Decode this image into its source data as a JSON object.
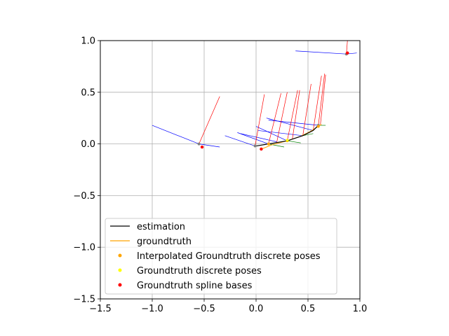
{
  "chart_data": {
    "type": "scatter",
    "title": "",
    "xlabel": "",
    "ylabel": "",
    "xlim": [
      -1.5,
      1.0
    ],
    "ylim": [
      -1.5,
      1.0
    ],
    "x_ticks": [
      -1.5,
      -1.0,
      -0.5,
      0.0,
      0.5,
      1.0
    ],
    "y_ticks": [
      -1.5,
      -1.0,
      -0.5,
      0.0,
      0.5,
      1.0
    ],
    "x_tick_labels": [
      "−1.5",
      "−1.0",
      "−0.5",
      "0.0",
      "0.5",
      "1.0"
    ],
    "y_tick_labels": [
      "−1.5",
      "−1.0",
      "−0.5",
      "0.0",
      "0.5",
      "1.0"
    ],
    "grid": true,
    "legend_placement": "lower-left",
    "legend": [
      {
        "label": "estimation",
        "kind": "line",
        "color": "#000000"
      },
      {
        "label": "groundtruth",
        "kind": "line",
        "color": "#ffa500"
      },
      {
        "label": "Interpolated Groundtruth discrete poses",
        "kind": "marker",
        "color": "#ffa500"
      },
      {
        "label": "Groundtruth discrete poses",
        "kind": "marker",
        "color": "#ffff00"
      },
      {
        "label": "Groundtruth spline bases",
        "kind": "marker",
        "color": "#ff0000"
      }
    ],
    "estimation": {
      "color": "#000000",
      "x": [
        0.0,
        0.12,
        0.3,
        0.45,
        0.55,
        0.6
      ],
      "y": [
        -0.02,
        0.0,
        0.03,
        0.08,
        0.13,
        0.18
      ]
    },
    "groundtruth": {
      "color": "#ffa500",
      "x": [
        0.05,
        0.15,
        0.3,
        0.42,
        0.52,
        0.6,
        0.63
      ],
      "y": [
        -0.05,
        -0.01,
        0.03,
        0.07,
        0.12,
        0.17,
        0.19
      ]
    },
    "interpolated_groundtruth_poses": {
      "color": "#ffa500",
      "x": [
        0.12,
        0.3,
        0.6
      ],
      "y": [
        0.0,
        0.03,
        0.17
      ]
    },
    "groundtruth_discrete_poses": {
      "color": "#ffff00",
      "x": [
        0.3
      ],
      "y": [
        0.035
      ]
    },
    "groundtruth_spline_bases": {
      "color": "#ff0000",
      "x": [
        -0.52,
        0.05,
        0.88
      ],
      "y": [
        -0.03,
        -0.05,
        0.88
      ]
    },
    "estimated_pose_points": {
      "color": "#808080",
      "x": [
        -0.55,
        -0.01,
        0.12,
        0.3,
        0.6,
        0.87
      ],
      "y": [
        0.0,
        -0.02,
        0.0,
        0.03,
        0.18,
        0.87
      ]
    },
    "axis_segments": [
      {
        "color": "#0000ff",
        "x1": -0.55,
        "y1": 0.0,
        "x2": -1.0,
        "y2": 0.18
      },
      {
        "color": "#0000ff",
        "x1": -0.55,
        "y1": 0.0,
        "x2": -0.35,
        "y2": -0.03
      },
      {
        "color": "#0000ff",
        "x1": -0.01,
        "y1": -0.02,
        "x2": -0.3,
        "y2": 0.08
      },
      {
        "color": "#0000ff",
        "x1": 0.12,
        "y1": 0.0,
        "x2": -0.18,
        "y2": 0.11
      },
      {
        "color": "#0000ff",
        "x1": 0.2,
        "y1": 0.02,
        "x2": -0.15,
        "y2": 0.1
      },
      {
        "color": "#0000ff",
        "x1": 0.3,
        "y1": 0.03,
        "x2": 0.0,
        "y2": 0.17
      },
      {
        "color": "#0000ff",
        "x1": 0.45,
        "y1": 0.08,
        "x2": 0.02,
        "y2": 0.13
      },
      {
        "color": "#0000ff",
        "x1": 0.55,
        "y1": 0.13,
        "x2": 0.1,
        "y2": 0.25
      },
      {
        "color": "#0000ff",
        "x1": 0.6,
        "y1": 0.18,
        "x2": 0.12,
        "y2": 0.23
      },
      {
        "color": "#0000ff",
        "x1": 0.87,
        "y1": 0.87,
        "x2": 0.38,
        "y2": 0.9
      },
      {
        "color": "#0000ff",
        "x1": 0.87,
        "y1": 0.87,
        "x2": 0.97,
        "y2": 0.88
      },
      {
        "color": "#008000",
        "x1": 0.12,
        "y1": 0.0,
        "x2": 0.27,
        "y2": -0.03
      },
      {
        "color": "#008000",
        "x1": 0.3,
        "y1": 0.03,
        "x2": 0.43,
        "y2": 0.01
      },
      {
        "color": "#008000",
        "x1": 0.45,
        "y1": 0.08,
        "x2": 0.55,
        "y2": 0.1
      },
      {
        "color": "#008000",
        "x1": 0.6,
        "y1": 0.18,
        "x2": 0.67,
        "y2": 0.18
      },
      {
        "color": "#ff0000",
        "x1": -0.55,
        "y1": 0.0,
        "x2": -0.35,
        "y2": 0.46
      },
      {
        "color": "#ff0000",
        "x1": -0.01,
        "y1": -0.02,
        "x2": 0.08,
        "y2": 0.48
      },
      {
        "color": "#ff0000",
        "x1": 0.12,
        "y1": 0.0,
        "x2": 0.24,
        "y2": 0.49
      },
      {
        "color": "#ff0000",
        "x1": 0.2,
        "y1": 0.02,
        "x2": 0.3,
        "y2": 0.5
      },
      {
        "color": "#ff0000",
        "x1": 0.3,
        "y1": 0.03,
        "x2": 0.4,
        "y2": 0.52
      },
      {
        "color": "#ff0000",
        "x1": 0.35,
        "y1": 0.05,
        "x2": 0.42,
        "y2": 0.52
      },
      {
        "color": "#ff0000",
        "x1": 0.45,
        "y1": 0.08,
        "x2": 0.53,
        "y2": 0.58
      },
      {
        "color": "#ff0000",
        "x1": 0.55,
        "y1": 0.13,
        "x2": 0.63,
        "y2": 0.66
      },
      {
        "color": "#ff0000",
        "x1": 0.6,
        "y1": 0.18,
        "x2": 0.66,
        "y2": 0.68
      },
      {
        "color": "#ff0000",
        "x1": 0.62,
        "y1": 0.19,
        "x2": 0.67,
        "y2": 0.67
      },
      {
        "color": "#ff0000",
        "x1": 0.87,
        "y1": 0.87,
        "x2": 0.88,
        "y2": 1.0
      }
    ]
  }
}
